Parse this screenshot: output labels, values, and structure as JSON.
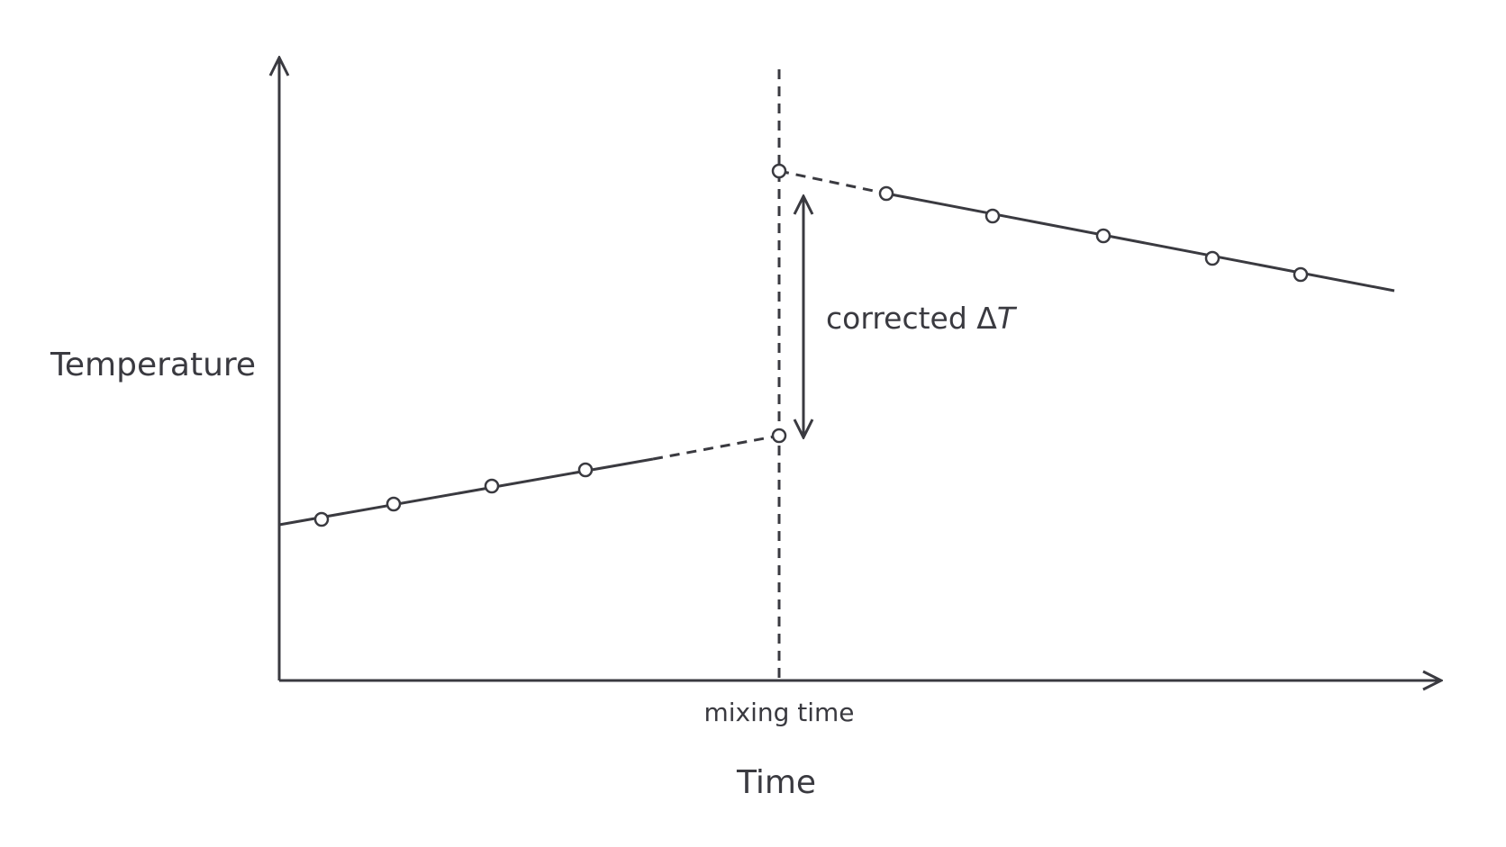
{
  "axes": {
    "y_label": "Temperature",
    "x_label": "Time"
  },
  "annotations": {
    "mixing_time": "mixing time",
    "delta_prefix": "corrected Δ",
    "delta_variable": "T"
  }
}
